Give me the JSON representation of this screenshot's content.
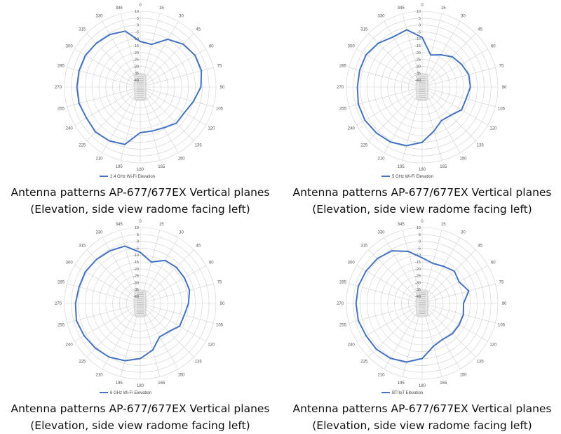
{
  "colors": {
    "series": "#4472c4",
    "grid": "#d0d0d0",
    "device": "#bdbdbd"
  },
  "caption": {
    "line1": "Antenna patterns AP-677/677EX Vertical planes",
    "line2": "(Elevation, side view radome facing left)"
  },
  "chart_data": [
    {
      "type": "polar",
      "title": "",
      "legend": "2.4 GHz Wi-Fi Elevation",
      "legend_position": "bottom",
      "r_range": [
        -40,
        10
      ],
      "r_ticks": [
        "10",
        "5",
        "0",
        "-5",
        "-10",
        "-15",
        "-20",
        "-25",
        "-30",
        "-35",
        "-40"
      ],
      "angle_ticks": [
        "0",
        "15",
        "30",
        "45",
        "60",
        "75",
        "90",
        "105",
        "120",
        "135",
        "150",
        "165",
        "180",
        "195",
        "210",
        "225",
        "240",
        "255",
        "270",
        "285",
        "300",
        "315",
        "330",
        "345"
      ],
      "series": [
        {
          "name": "2.4 GHz Wi-Fi Elevation",
          "angles": [
            0,
            15,
            30,
            45,
            60,
            75,
            90,
            105,
            120,
            135,
            150,
            165,
            180,
            195,
            210,
            225,
            240,
            255,
            270,
            285,
            300,
            315,
            330,
            345
          ],
          "values": [
            -12,
            -13,
            -5,
            -1,
            1,
            1,
            -1,
            -5,
            -8,
            -8,
            -11,
            -12,
            -12,
            -2,
            0,
            1,
            0,
            1,
            1,
            1,
            1,
            0,
            -1,
            -3
          ]
        }
      ]
    },
    {
      "type": "polar",
      "title": "",
      "legend": "5 GHz Wi-Fi Elevation",
      "legend_position": "bottom",
      "r_range": [
        -40,
        10
      ],
      "r_ticks": [
        "10",
        "5",
        "0",
        "-5",
        "-10",
        "-15",
        "-20",
        "-25",
        "-30",
        "-35",
        "-40"
      ],
      "angle_ticks": [
        "0",
        "15",
        "30",
        "45",
        "60",
        "75",
        "90",
        "105",
        "120",
        "135",
        "150",
        "165",
        "180",
        "195",
        "210",
        "225",
        "240",
        "255",
        "270",
        "285",
        "300",
        "315",
        "330",
        "345"
      ],
      "series": [
        {
          "name": "5 GHz Wi-Fi Elevation",
          "angles": [
            0,
            15,
            30,
            45,
            60,
            75,
            90,
            105,
            120,
            135,
            150,
            165,
            180,
            195,
            210,
            225,
            240,
            255,
            270,
            285,
            300,
            315,
            330,
            345
          ],
          "values": [
            -9,
            -21,
            -18,
            -14,
            -12,
            -10,
            -10,
            -12,
            -12,
            -16,
            -17,
            -12,
            -5,
            -1,
            1,
            2,
            3,
            3,
            2,
            2,
            2,
            0,
            -3,
            -2
          ]
        }
      ]
    },
    {
      "type": "polar",
      "title": "",
      "legend": "6 GHz Wi-Fi Elevation",
      "legend_position": "bottom",
      "r_range": [
        -40,
        10
      ],
      "r_ticks": [
        "10",
        "5",
        "0",
        "-5",
        "-10",
        "-15",
        "-20",
        "-25",
        "-30",
        "-35",
        "-40"
      ],
      "angle_ticks": [
        "0",
        "15",
        "30",
        "45",
        "60",
        "75",
        "90",
        "105",
        "120",
        "135",
        "150",
        "165",
        "180",
        "195",
        "210",
        "225",
        "240",
        "255",
        "270",
        "285",
        "300",
        "315",
        "330",
        "345"
      ],
      "series": [
        {
          "name": "6 GHz Wi-Fi Elevation",
          "angles": [
            0,
            15,
            30,
            45,
            60,
            75,
            90,
            105,
            120,
            135,
            150,
            165,
            180,
            195,
            210,
            225,
            240,
            255,
            270,
            285,
            300,
            315,
            330,
            345
          ],
          "values": [
            -8,
            -14,
            -9,
            -8,
            -8,
            -8,
            -10,
            -12,
            -12,
            -16,
            -17,
            -10,
            -5,
            -2,
            0,
            1,
            2,
            3,
            2,
            1,
            1,
            0,
            -1,
            -2
          ]
        }
      ]
    },
    {
      "type": "polar",
      "title": "",
      "legend": "BT/IoT Elevation",
      "legend_position": "bottom",
      "r_range": [
        -40,
        10
      ],
      "r_ticks": [
        "10",
        "5",
        "0",
        "-5",
        "-10",
        "-15",
        "-20",
        "-25",
        "-30",
        "-35",
        "-40"
      ],
      "angle_ticks": [
        "0",
        "15",
        "30",
        "45",
        "60",
        "75",
        "90",
        "105",
        "120",
        "135",
        "150",
        "165",
        "180",
        "195",
        "210",
        "225",
        "240",
        "255",
        "270",
        "285",
        "300",
        "315",
        "330",
        "345"
      ],
      "series": [
        {
          "name": "BT/IoT Elevation",
          "angles": [
            0,
            15,
            30,
            45,
            60,
            75,
            90,
            105,
            120,
            135,
            150,
            165,
            180,
            195,
            210,
            225,
            240,
            255,
            270,
            285,
            300,
            315,
            330,
            345
          ],
          "values": [
            -12,
            -15,
            -14,
            -12,
            -14,
            -10,
            -15,
            -14,
            -14,
            -14,
            -15,
            -13,
            -5,
            -1,
            1,
            2,
            2,
            3,
            3,
            3,
            2,
            1,
            -1,
            -6
          ]
        }
      ]
    }
  ]
}
